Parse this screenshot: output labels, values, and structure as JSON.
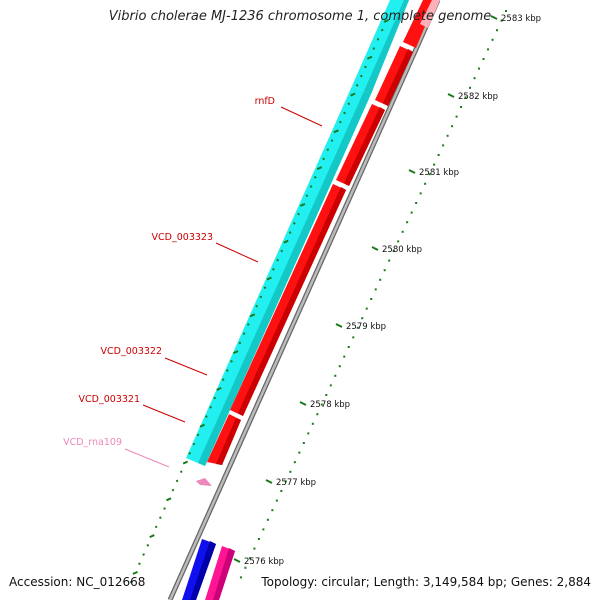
{
  "title": "Vibrio cholerae MJ-1236 chromosome 1, complete genome",
  "footer": {
    "accession": "Accession: NC_012668",
    "summary": "Topology: circular; Length: 3,149,584 bp; Genes: 2,884"
  },
  "colors": {
    "background": "#ffffff",
    "backbone": "#888888",
    "gene_label": "#cc0000",
    "rna_label": "#ee88bb",
    "tick_label": "#111111",
    "gc_marker": "#1a7a1a",
    "cyan_track": "#22f0f0",
    "red_track": "#ff1111",
    "blue_track": "#1010ee",
    "pink_track": "#ff1493"
  },
  "scale_ticks": [
    {
      "label": "2583 kbp"
    },
    {
      "label": "2582 kbp"
    },
    {
      "label": "2581 kbp"
    },
    {
      "label": "2580 kbp"
    },
    {
      "label": "2579 kbp"
    },
    {
      "label": "2578 kbp"
    },
    {
      "label": "2577 kbp"
    },
    {
      "label": "2576 kbp"
    }
  ],
  "gene_labels": [
    {
      "label": "rnfD",
      "type": "gene"
    },
    {
      "label": "VCD_003323",
      "type": "gene"
    },
    {
      "label": "VCD_003322",
      "type": "gene"
    },
    {
      "label": "VCD_003321",
      "type": "gene"
    },
    {
      "label": "VCD_rna109",
      "type": "rna"
    }
  ]
}
